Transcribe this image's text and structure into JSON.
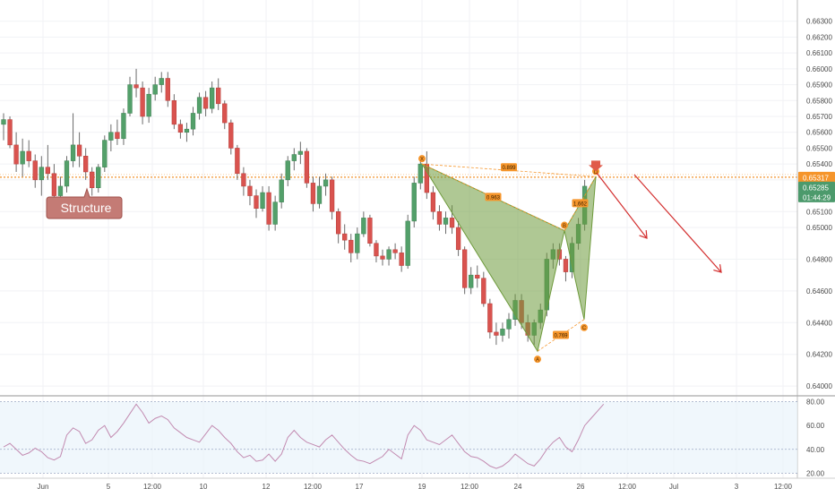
{
  "chart_data": {
    "type": "candlestick",
    "price_axis": {
      "min": 0.6395,
      "max": 0.664,
      "ticks": [
        "0.64000",
        "0.64200",
        "0.64400",
        "0.64600",
        "0.64800",
        "0.65000",
        "0.65100",
        "0.65300",
        "0.65400",
        "0.65500",
        "0.65600",
        "0.65700",
        "0.65800",
        "0.65900",
        "0.66000",
        "0.66100",
        "0.66200",
        "0.66300"
      ],
      "tick_values": [
        0.64,
        0.642,
        0.644,
        0.646,
        0.648,
        0.65,
        0.651,
        0.653,
        0.654,
        0.655,
        0.656,
        0.657,
        0.658,
        0.659,
        0.66,
        0.661,
        0.662,
        0.663
      ],
      "current_price": "0.65317",
      "current_price_value": 0.65317,
      "second_price": "0.65285",
      "countdown": "01:44:29"
    },
    "time_axis_labels": [
      "Jun",
      "5",
      "12:00",
      "10",
      "12",
      "12:00",
      "17",
      "19",
      "12:00",
      "24",
      "26",
      "12:00",
      "Jul",
      "3",
      "12:00"
    ],
    "candles": [
      [
        0.6565,
        0.6572,
        0.6555,
        0.6568
      ],
      [
        0.6568,
        0.657,
        0.655,
        0.6552
      ],
      [
        0.6552,
        0.656,
        0.6535,
        0.654
      ],
      [
        0.654,
        0.6556,
        0.6532,
        0.6548
      ],
      [
        0.6548,
        0.6555,
        0.6538,
        0.6542
      ],
      [
        0.6542,
        0.6546,
        0.6525,
        0.653
      ],
      [
        0.653,
        0.6545,
        0.652,
        0.6538
      ],
      [
        0.6538,
        0.6552,
        0.653,
        0.6534
      ],
      [
        0.6534,
        0.654,
        0.6515,
        0.652
      ],
      [
        0.652,
        0.6532,
        0.651,
        0.6526
      ],
      [
        0.6526,
        0.6545,
        0.6522,
        0.6542
      ],
      [
        0.6542,
        0.6572,
        0.6538,
        0.6552
      ],
      [
        0.6552,
        0.656,
        0.6538,
        0.6545
      ],
      [
        0.6545,
        0.655,
        0.653,
        0.6535
      ],
      [
        0.6535,
        0.6538,
        0.652,
        0.6525
      ],
      [
        0.6525,
        0.654,
        0.6522,
        0.6538
      ],
      [
        0.6538,
        0.6558,
        0.6535,
        0.6555
      ],
      [
        0.6555,
        0.6565,
        0.6548,
        0.656
      ],
      [
        0.656,
        0.6568,
        0.6552,
        0.6556
      ],
      [
        0.6556,
        0.6575,
        0.6552,
        0.6572
      ],
      [
        0.6572,
        0.6595,
        0.657,
        0.659
      ],
      [
        0.659,
        0.66,
        0.6582,
        0.6588
      ],
      [
        0.6588,
        0.6592,
        0.6565,
        0.657
      ],
      [
        0.657,
        0.6588,
        0.6566,
        0.6584
      ],
      [
        0.6584,
        0.6595,
        0.658,
        0.659
      ],
      [
        0.659,
        0.6598,
        0.6585,
        0.6594
      ],
      [
        0.6594,
        0.6598,
        0.6576,
        0.658
      ],
      [
        0.658,
        0.6584,
        0.6562,
        0.6565
      ],
      [
        0.6565,
        0.6568,
        0.6556,
        0.656
      ],
      [
        0.656,
        0.6566,
        0.6554,
        0.6562
      ],
      [
        0.6562,
        0.6576,
        0.6558,
        0.6572
      ],
      [
        0.6572,
        0.6585,
        0.6568,
        0.6582
      ],
      [
        0.6582,
        0.6586,
        0.657,
        0.6575
      ],
      [
        0.6575,
        0.6592,
        0.6572,
        0.6588
      ],
      [
        0.6588,
        0.6594,
        0.6574,
        0.6578
      ],
      [
        0.6578,
        0.658,
        0.6562,
        0.6566
      ],
      [
        0.6566,
        0.6568,
        0.6546,
        0.655
      ],
      [
        0.655,
        0.6552,
        0.653,
        0.6534
      ],
      [
        0.6534,
        0.6538,
        0.652,
        0.6526
      ],
      [
        0.6526,
        0.653,
        0.6514,
        0.652
      ],
      [
        0.652,
        0.6524,
        0.6506,
        0.6512
      ],
      [
        0.6512,
        0.6526,
        0.651,
        0.6522
      ],
      [
        0.6522,
        0.6526,
        0.6498,
        0.6502
      ],
      [
        0.6502,
        0.652,
        0.6498,
        0.6516
      ],
      [
        0.6516,
        0.6534,
        0.6512,
        0.653
      ],
      [
        0.653,
        0.6545,
        0.6526,
        0.6542
      ],
      [
        0.6542,
        0.655,
        0.6536,
        0.6546
      ],
      [
        0.6546,
        0.6554,
        0.654,
        0.6548
      ],
      [
        0.6548,
        0.655,
        0.6525,
        0.6528
      ],
      [
        0.6528,
        0.6532,
        0.651,
        0.6515
      ],
      [
        0.6515,
        0.6532,
        0.6512,
        0.6526
      ],
      [
        0.6526,
        0.6534,
        0.652,
        0.653
      ],
      [
        0.653,
        0.6532,
        0.6505,
        0.651
      ],
      [
        0.651,
        0.6512,
        0.649,
        0.6496
      ],
      [
        0.6496,
        0.6502,
        0.6486,
        0.6492
      ],
      [
        0.6492,
        0.6496,
        0.6478,
        0.6484
      ],
      [
        0.6484,
        0.65,
        0.648,
        0.6496
      ],
      [
        0.6496,
        0.651,
        0.6494,
        0.6506
      ],
      [
        0.6506,
        0.6508,
        0.6488,
        0.649
      ],
      [
        0.649,
        0.6492,
        0.6478,
        0.6482
      ],
      [
        0.6482,
        0.6486,
        0.6476,
        0.648
      ],
      [
        0.648,
        0.6488,
        0.6476,
        0.6486
      ],
      [
        0.6486,
        0.649,
        0.648,
        0.6484
      ],
      [
        0.6484,
        0.6488,
        0.6472,
        0.6476
      ],
      [
        0.6476,
        0.6508,
        0.6474,
        0.6504
      ],
      [
        0.6504,
        0.6532,
        0.65,
        0.6528
      ],
      [
        0.6528,
        0.6545,
        0.6524,
        0.654
      ],
      [
        0.654,
        0.6548,
        0.6518,
        0.6522
      ],
      [
        0.6522,
        0.6526,
        0.6505,
        0.651
      ],
      [
        0.651,
        0.6514,
        0.6498,
        0.6502
      ],
      [
        0.6502,
        0.651,
        0.6496,
        0.6506
      ],
      [
        0.6506,
        0.6514,
        0.6496,
        0.65
      ],
      [
        0.65,
        0.6504,
        0.6482,
        0.6486
      ],
      [
        0.6486,
        0.6488,
        0.6458,
        0.6462
      ],
      [
        0.6462,
        0.6475,
        0.6458,
        0.647
      ],
      [
        0.647,
        0.6476,
        0.6462,
        0.6468
      ],
      [
        0.6468,
        0.6472,
        0.645,
        0.6452
      ],
      [
        0.6452,
        0.6455,
        0.643,
        0.6434
      ],
      [
        0.6434,
        0.644,
        0.6426,
        0.6432
      ],
      [
        0.6432,
        0.644,
        0.6428,
        0.6436
      ],
      [
        0.6436,
        0.6446,
        0.643,
        0.6442
      ],
      [
        0.6442,
        0.6458,
        0.6438,
        0.6454
      ],
      [
        0.6454,
        0.6458,
        0.6436,
        0.644
      ],
      [
        0.644,
        0.6445,
        0.6428,
        0.6432
      ],
      [
        0.6432,
        0.6442,
        0.6426,
        0.644
      ],
      [
        0.644,
        0.6452,
        0.6436,
        0.6448
      ],
      [
        0.6448,
        0.6484,
        0.6444,
        0.648
      ],
      [
        0.648,
        0.649,
        0.6474,
        0.6486
      ],
      [
        0.6486,
        0.649,
        0.6476,
        0.648
      ],
      [
        0.648,
        0.6482,
        0.6466,
        0.6472
      ],
      [
        0.6472,
        0.6494,
        0.6468,
        0.649
      ],
      [
        0.649,
        0.6506,
        0.6486,
        0.6502
      ],
      [
        0.6502,
        0.653,
        0.6498,
        0.6526
      ]
    ],
    "harmonic_pattern": {
      "points": [
        {
          "label": "X",
          "price": 0.654
        },
        {
          "label": "A",
          "price": 0.6422
        },
        {
          "label": "B",
          "price": 0.6498
        },
        {
          "label": "C",
          "price": 0.6442
        },
        {
          "label": "D",
          "price": 0.6532
        }
      ],
      "ratios": [
        "0.899",
        "0.963",
        "1.662",
        "0.769"
      ]
    },
    "annotations": {
      "callout": "Structure"
    },
    "rsi": {
      "levels": [
        80,
        40,
        20
      ],
      "tick_labels": [
        "80.00",
        "60.00",
        "40.00",
        "20.00"
      ],
      "values": [
        42,
        45,
        40,
        35,
        37,
        41,
        38,
        33,
        31,
        34,
        52,
        58,
        55,
        45,
        48,
        56,
        60,
        50,
        55,
        62,
        70,
        78,
        71,
        62,
        66,
        68,
        65,
        58,
        54,
        50,
        48,
        46,
        53,
        60,
        56,
        50,
        45,
        38,
        33,
        35,
        30,
        31,
        36,
        30,
        36,
        50,
        56,
        50,
        46,
        44,
        42,
        48,
        52,
        46,
        40,
        35,
        31,
        30,
        28,
        31,
        34,
        40,
        36,
        32,
        52,
        60,
        56,
        48,
        46,
        44,
        48,
        52,
        45,
        38,
        34,
        33,
        30,
        26,
        24,
        26,
        30,
        36,
        32,
        28,
        26,
        32,
        40,
        46,
        50,
        42,
        38,
        48,
        60,
        66,
        72,
        78
      ]
    }
  }
}
